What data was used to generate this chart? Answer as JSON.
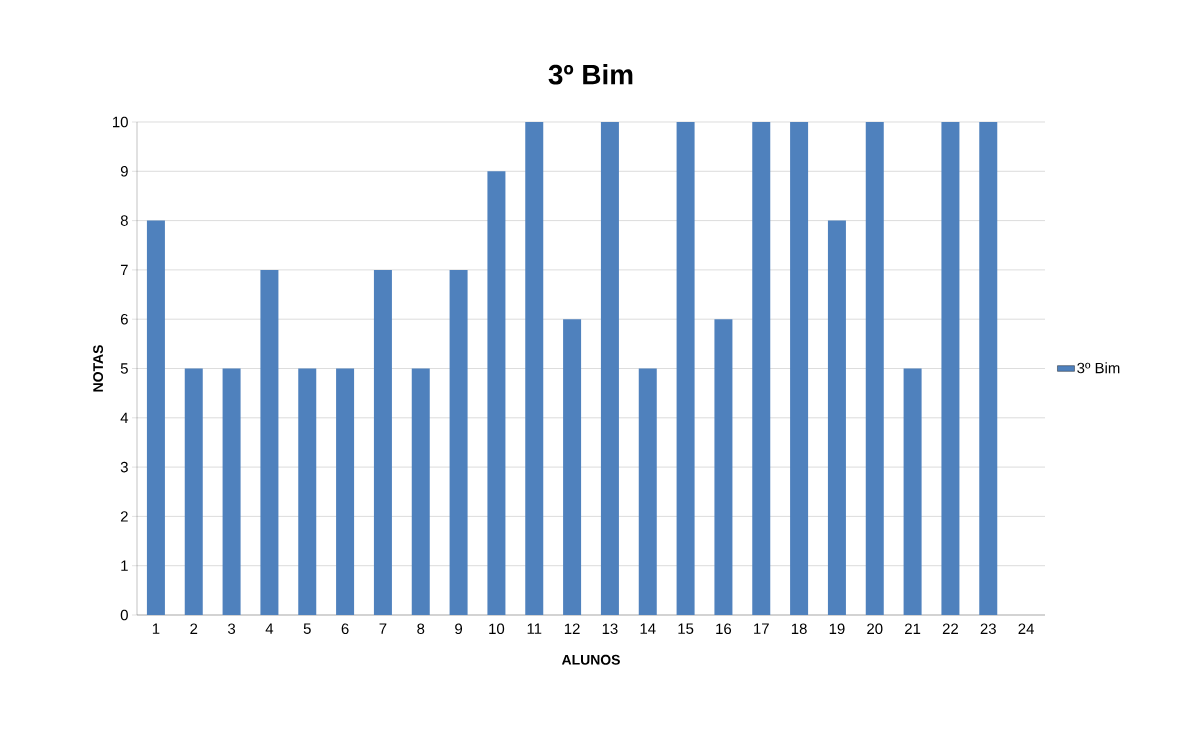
{
  "chart_data": {
    "type": "bar",
    "title": "3º Bim",
    "xlabel": "ALUNOS",
    "ylabel": "NOTAS",
    "categories": [
      "1",
      "2",
      "3",
      "4",
      "5",
      "6",
      "7",
      "8",
      "9",
      "10",
      "11",
      "12",
      "13",
      "14",
      "15",
      "16",
      "17",
      "18",
      "19",
      "20",
      "21",
      "22",
      "23",
      "24"
    ],
    "series": [
      {
        "name": "3º Bim",
        "color": "#4f81bd",
        "values": [
          8,
          5,
          5,
          7,
          5,
          5,
          7,
          5,
          7,
          9,
          10,
          6,
          10,
          5,
          10,
          6,
          10,
          10,
          8,
          10,
          5,
          10,
          10,
          null
        ]
      }
    ],
    "ylim": [
      0,
      10
    ],
    "yticks": [
      0,
      1,
      2,
      3,
      4,
      5,
      6,
      7,
      8,
      9,
      10
    ],
    "grid": "y",
    "legend": "right"
  }
}
